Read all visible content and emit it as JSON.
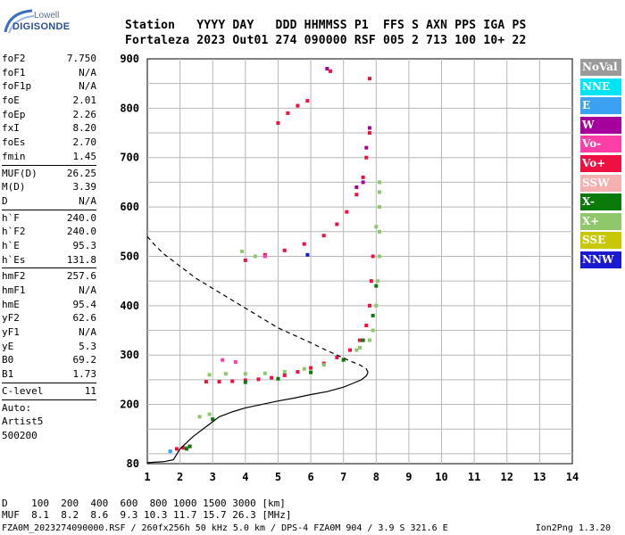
{
  "logo": {
    "top": "Lowell",
    "bottom": "DIGISONDE"
  },
  "header": {
    "keys": "Station   YYYY DAY   DDD HHMMSS P1  FFS S AXN PPS IGA PS",
    "values": "Fortaleza 2023 Out01 274 090000 RSF 005 2 713 100 10+ 22"
  },
  "parameters": {
    "group1": [
      {
        "name": "foF2",
        "value": "7.750"
      },
      {
        "name": "foF1",
        "value": "N/A"
      },
      {
        "name": "foF1p",
        "value": "N/A"
      },
      {
        "name": "foE",
        "value": "2.01"
      },
      {
        "name": "foEp",
        "value": "2.26"
      },
      {
        "name": "fxI",
        "value": "8.20"
      },
      {
        "name": "foEs",
        "value": "2.70"
      },
      {
        "name": "fmin",
        "value": "1.45"
      }
    ],
    "group2": [
      {
        "name": "MUF(D)",
        "value": "26.25"
      },
      {
        "name": "M(D)",
        "value": "3.39"
      },
      {
        "name": "D",
        "value": "N/A"
      }
    ],
    "group3": [
      {
        "name": "h`F",
        "value": "240.0"
      },
      {
        "name": "h`F2",
        "value": "240.0"
      },
      {
        "name": "h`E",
        "value": "95.3"
      },
      {
        "name": "h`Es",
        "value": "131.8"
      }
    ],
    "group4": [
      {
        "name": "hmF2",
        "value": "257.6"
      },
      {
        "name": "hmF1",
        "value": "N/A"
      },
      {
        "name": "hmE",
        "value": "95.4"
      },
      {
        "name": "yF2",
        "value": "62.6"
      },
      {
        "name": "yF1",
        "value": "N/A"
      },
      {
        "name": "yE",
        "value": "5.3"
      },
      {
        "name": "B0",
        "value": "69.2"
      },
      {
        "name": "B1",
        "value": "1.73"
      }
    ],
    "group5": [
      {
        "name": "C-level",
        "value": "11"
      }
    ],
    "autoscale": [
      "Auto:",
      "Artist5",
      "500200"
    ]
  },
  "legend": [
    {
      "label": "NoVal",
      "color": "#9a9a9a"
    },
    {
      "label": "NNE",
      "color": "#00e5f5"
    },
    {
      "label": "E",
      "color": "#3aa2f0"
    },
    {
      "label": "W",
      "color": "#a5009c"
    },
    {
      "label": "Vo-",
      "color": "#ff3ea8"
    },
    {
      "label": "Vo+",
      "color": "#ee1040"
    },
    {
      "label": "SSW",
      "color": "#f5b0b0"
    },
    {
      "label": "X-",
      "color": "#0a7a0a"
    },
    {
      "label": "X+",
      "color": "#8ec86a"
    },
    {
      "label": "SSE",
      "color": "#c8c800"
    },
    {
      "label": "NNW",
      "color": "#1a1ad0"
    }
  ],
  "bottom_info": {
    "distance_line": "D    100  200  400  600  800 1000 1500 3000 [km]",
    "muf_line": "MUF  8.1  8.2  8.6  9.3 10.3 11.7 15.7 26.3 [MHz]"
  },
  "footer": {
    "left": "FZA0M_2023274090000.RSF / 260fx256h 50 kHz 5.0 km / DPS-4 FZA0M 904 / 3.9 S 321.6 E",
    "right": "Ion2Png 1.3.20"
  },
  "chart_data": {
    "type": "scatter",
    "xlabel": "",
    "ylabel": "",
    "xlim": [
      1,
      14
    ],
    "ylim": [
      80,
      900
    ],
    "xticks": [
      1,
      2,
      3,
      4,
      5,
      6,
      7,
      8,
      9,
      10,
      11,
      12,
      13,
      14
    ],
    "yticks": [
      80,
      200,
      300,
      400,
      500,
      600,
      700,
      800,
      900
    ],
    "grid": true,
    "series": [
      {
        "name": "Vo+",
        "color": "#ee1040",
        "x": [
          2.8,
          3.2,
          3.6,
          4.0,
          4.4,
          4.8,
          5.2,
          5.6,
          6.0,
          6.4,
          6.8,
          7.2,
          7.5,
          7.7,
          7.8,
          7.85,
          7.9,
          4.0,
          4.6,
          5.2,
          5.8,
          6.4,
          6.8,
          7.1,
          7.4,
          7.6,
          7.7,
          7.8,
          5.0,
          5.3,
          5.6,
          5.9,
          6.6,
          7.8,
          1.9,
          2.1,
          2.3
        ],
        "y": [
          246,
          246,
          247,
          249,
          251,
          254,
          259,
          266,
          274,
          283,
          295,
          310,
          330,
          360,
          400,
          450,
          500,
          492,
          503,
          512,
          525,
          542,
          565,
          590,
          625,
          660,
          700,
          750,
          770,
          790,
          805,
          815,
          875,
          860,
          110,
          112,
          115
        ]
      },
      {
        "name": "X+",
        "color": "#8ec86a",
        "x": [
          2.9,
          3.4,
          4.0,
          4.6,
          5.2,
          5.8,
          6.4,
          7.0,
          7.5,
          7.9,
          8.0,
          8.05,
          8.1,
          8.1,
          8.1,
          8.1,
          7.4,
          7.8,
          8.0,
          8.1,
          3.9,
          4.3,
          2.6,
          2.9,
          3.0,
          1.7,
          2.2
        ],
        "y": [
          260,
          262,
          262,
          263,
          266,
          272,
          280,
          292,
          315,
          350,
          400,
          450,
          500,
          550,
          600,
          650,
          310,
          330,
          560,
          630,
          510,
          500,
          175,
          180,
          170,
          105,
          112
        ]
      },
      {
        "name": "X-",
        "color": "#0a7a0a",
        "x": [
          4.0,
          5.0,
          6.0,
          7.0,
          7.6,
          7.9,
          8.0,
          3.0,
          2.3,
          2.2
        ],
        "y": [
          245,
          252,
          265,
          290,
          330,
          380,
          440,
          170,
          115,
          110
        ]
      },
      {
        "name": "W",
        "color": "#a5009c",
        "x": [
          6.5,
          7.4,
          7.6,
          7.7,
          7.8
        ],
        "y": [
          880,
          640,
          650,
          720,
          760
        ]
      },
      {
        "name": "Vo-",
        "color": "#ff3ea8",
        "x": [
          3.3,
          3.7,
          4.6
        ],
        "y": [
          290,
          286,
          500
        ]
      },
      {
        "name": "NNW",
        "color": "#1a1ad0",
        "x": [
          5.9
        ],
        "y": [
          503
        ]
      },
      {
        "name": "E",
        "color": "#3aa2f0",
        "x": [
          1.7
        ],
        "y": [
          105
        ]
      }
    ],
    "profile": {
      "x": [
        1.0,
        1.5,
        1.8,
        2.0,
        2.4,
        2.8,
        3.2,
        3.6,
        4.0,
        4.5,
        5.0,
        5.5,
        6.0,
        6.5,
        7.0,
        7.3,
        7.55,
        7.7,
        7.75,
        7.7,
        7.5,
        7.2,
        6.8,
        6.4,
        6.0,
        5.5,
        5.0,
        4.5,
        4.0,
        3.5,
        3.0,
        2.5,
        2.0,
        1.5,
        1.2,
        1.0
      ],
      "y": [
        82,
        84,
        88,
        110,
        135,
        155,
        175,
        185,
        193,
        200,
        207,
        213,
        220,
        226,
        235,
        243,
        250,
        258,
        265,
        272,
        280,
        288,
        300,
        312,
        325,
        340,
        355,
        375,
        395,
        415,
        435,
        455,
        480,
        505,
        525,
        540
      ]
    }
  }
}
